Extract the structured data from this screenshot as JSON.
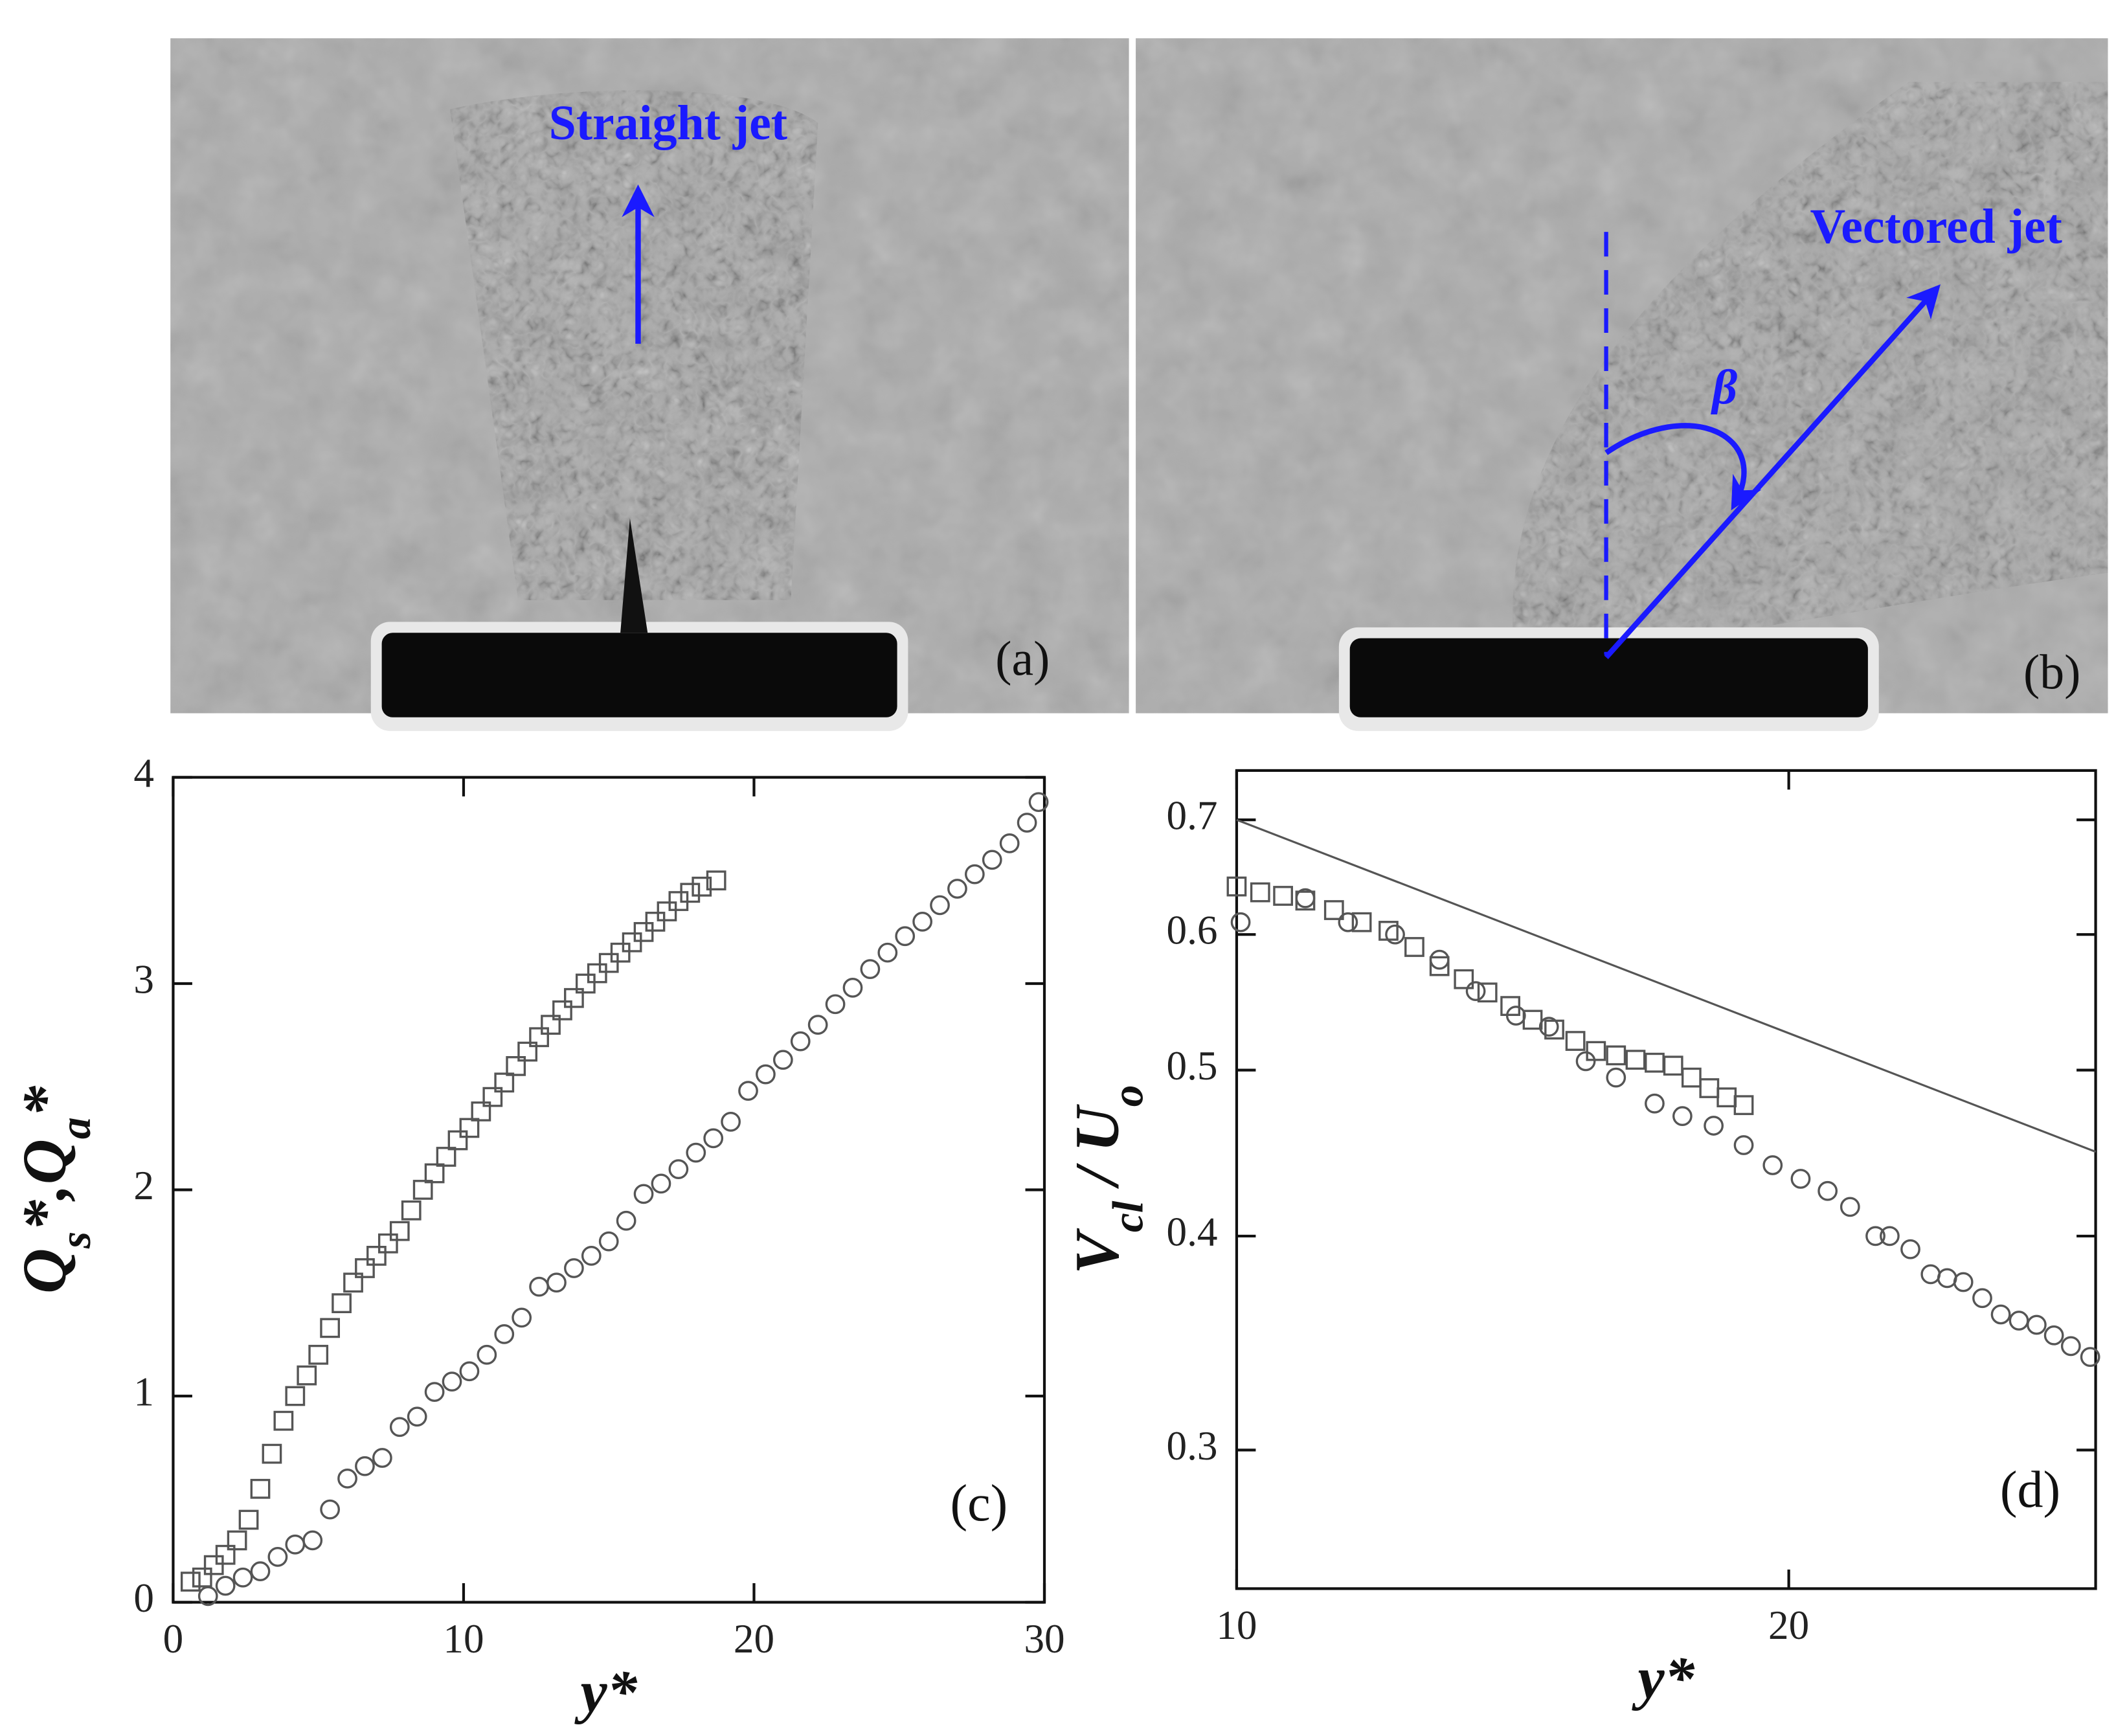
{
  "photos": [
    {
      "annotation": "Straight jet",
      "label": "(a)"
    },
    {
      "annotation": "Vectored jet",
      "angle_label": "β",
      "label": "(b)"
    }
  ],
  "chart_data": [
    {
      "type": "scatter",
      "panel_label": "(c)",
      "xlabel": "y*",
      "ylabel": [
        "Q",
        "s",
        "*,Q",
        "a",
        "*"
      ],
      "xlim": [
        0,
        30
      ],
      "ylim": [
        0,
        4
      ],
      "xticks": [
        0,
        10,
        20,
        30
      ],
      "yticks": [
        0,
        1,
        2,
        3,
        4
      ],
      "log": false,
      "series": [
        {
          "marker": "square",
          "color": "#555555",
          "x": [
            0.6,
            1,
            1.4,
            1.8,
            2.2,
            2.6,
            3.0,
            3.4,
            3.8,
            4.2,
            4.6,
            5.0,
            5.4,
            5.8,
            6.2,
            6.6,
            7.0,
            7.4,
            7.8,
            8.2,
            8.6,
            9.0,
            9.4,
            9.8,
            10.2,
            10.6,
            11.0,
            11.4,
            11.8,
            12.2,
            12.6,
            13.0,
            13.4,
            13.8,
            14.2,
            14.6,
            15.0,
            15.4,
            15.8,
            16.2,
            16.6,
            17.0,
            17.4,
            17.8,
            18.2,
            18.7
          ],
          "values": [
            0.1,
            0.12,
            0.18,
            0.23,
            0.3,
            0.4,
            0.55,
            0.72,
            0.88,
            1.0,
            1.1,
            1.2,
            1.33,
            1.45,
            1.55,
            1.62,
            1.68,
            1.74,
            1.8,
            1.9,
            2.0,
            2.08,
            2.16,
            2.24,
            2.3,
            2.38,
            2.45,
            2.52,
            2.6,
            2.67,
            2.74,
            2.8,
            2.87,
            2.93,
            3.0,
            3.05,
            3.1,
            3.15,
            3.2,
            3.25,
            3.3,
            3.35,
            3.4,
            3.44,
            3.47,
            3.5
          ]
        },
        {
          "marker": "circle",
          "color": "#555555",
          "x": [
            1.2,
            1.8,
            2.4,
            3.0,
            3.6,
            4.2,
            4.8,
            5.4,
            6,
            6.6,
            7.2,
            7.8,
            8.4,
            9,
            9.6,
            10.2,
            10.8,
            11.4,
            12,
            12.6,
            13.2,
            13.8,
            14.4,
            15,
            15.6,
            16.2,
            16.8,
            17.4,
            18,
            18.6,
            19.2,
            19.8,
            20.4,
            21,
            21.6,
            22.2,
            22.8,
            23.4,
            24,
            24.6,
            25.2,
            25.8,
            26.4,
            27,
            27.6,
            28.2,
            28.8,
            29.4,
            29.8
          ],
          "values": [
            0.03,
            0.08,
            0.12,
            0.15,
            0.22,
            0.28,
            0.3,
            0.45,
            0.6,
            0.66,
            0.7,
            0.85,
            0.9,
            1.02,
            1.07,
            1.12,
            1.2,
            1.3,
            1.38,
            1.53,
            1.55,
            1.62,
            1.68,
            1.75,
            1.85,
            1.98,
            2.03,
            2.1,
            2.18,
            2.25,
            2.33,
            2.48,
            2.56,
            2.63,
            2.72,
            2.8,
            2.9,
            2.98,
            3.07,
            3.15,
            3.23,
            3.3,
            3.38,
            3.46,
            3.53,
            3.6,
            3.68,
            3.78,
            3.88
          ]
        }
      ]
    },
    {
      "type": "scatter",
      "panel_label": "(d)",
      "xlabel": "y*",
      "ylabel": [
        "V",
        "cl",
        " / U",
        "o"
      ],
      "xlim": [
        10,
        29.4
      ],
      "ylim": [
        0.249,
        0.748
      ],
      "xticks": [
        10,
        20
      ],
      "yticks": [
        0.3,
        0.4,
        0.5,
        0.6,
        0.7
      ],
      "log": true,
      "series": [
        {
          "marker": "line",
          "color": "#555555",
          "x": [
            10,
            29.4
          ],
          "values": [
            0.7,
            0.448
          ]
        },
        {
          "marker": "square",
          "color": "#555555",
          "x": [
            10,
            10.3,
            10.6,
            10.9,
            11.3,
            11.7,
            12.1,
            12.5,
            12.9,
            13.3,
            13.7,
            14.1,
            14.5,
            14.9,
            15.3,
            15.7,
            16.1,
            16.5,
            16.9,
            17.3,
            17.7,
            18.1,
            18.5,
            18.9
          ],
          "values": [
            0.64,
            0.635,
            0.632,
            0.628,
            0.62,
            0.61,
            0.603,
            0.59,
            0.575,
            0.565,
            0.555,
            0.545,
            0.535,
            0.528,
            0.52,
            0.513,
            0.51,
            0.507,
            0.505,
            0.503,
            0.495,
            0.488,
            0.482,
            0.477
          ]
        },
        {
          "marker": "circle",
          "color": "#555555",
          "x": [
            10.05,
            10.9,
            11.5,
            12.2,
            12.9,
            13.5,
            14.2,
            14.8,
            15.5,
            16.1,
            16.9,
            17.5,
            18.2,
            18.9,
            19.6,
            20.3,
            21,
            21.6,
            22.3,
            22.7,
            23.3,
            23.9,
            24.4,
            24.9,
            25.5,
            26.1,
            26.7,
            27.3,
            27.9,
            28.5,
            29.2
          ],
          "values": [
            0.61,
            0.63,
            0.61,
            0.6,
            0.58,
            0.556,
            0.538,
            0.53,
            0.506,
            0.495,
            0.478,
            0.47,
            0.464,
            0.452,
            0.44,
            0.432,
            0.425,
            0.416,
            0.4,
            0.4,
            0.393,
            0.38,
            0.378,
            0.376,
            0.368,
            0.36,
            0.357,
            0.355,
            0.35,
            0.345,
            0.34
          ]
        }
      ]
    }
  ]
}
